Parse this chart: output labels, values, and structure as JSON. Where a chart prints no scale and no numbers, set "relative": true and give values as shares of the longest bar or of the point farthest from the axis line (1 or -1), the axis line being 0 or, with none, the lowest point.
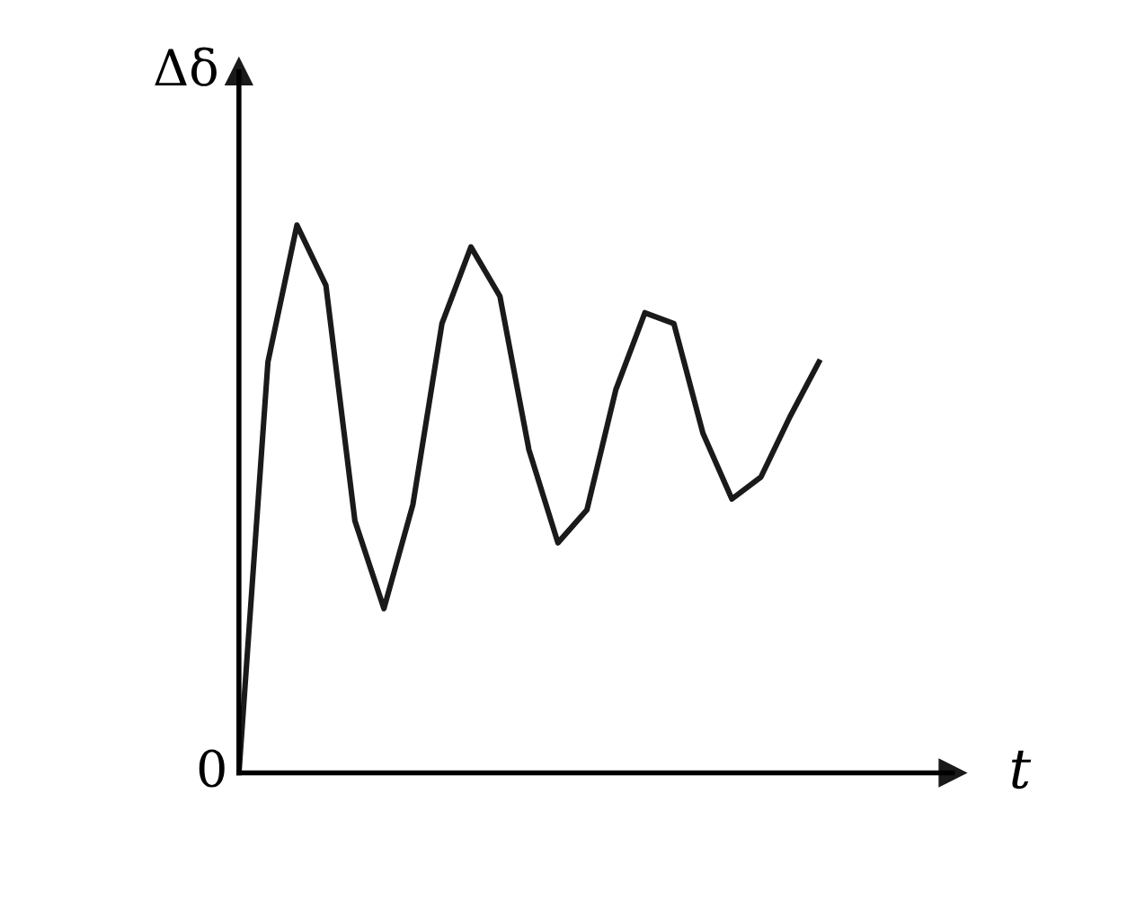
{
  "chart_data": {
    "type": "line",
    "relative": true,
    "xlabel": "t",
    "ylabel": "Δδ",
    "annotations": [
      "0"
    ],
    "categories": [
      null,
      null,
      null,
      null,
      null,
      null,
      null,
      null,
      null,
      null,
      null,
      null,
      null,
      null,
      null,
      null,
      null,
      null,
      null,
      null,
      null
    ],
    "series": [
      {
        "color": "#1a1a1a",
        "values": [
          0,
          0.75,
          1.0,
          0.89,
          0.46,
          0.3,
          0.49,
          0.82,
          0.96,
          0.87,
          0.59,
          0.42,
          0.48,
          0.7,
          0.84,
          0.82,
          0.62,
          0.5,
          0.54,
          0.65,
          0.75
        ]
      }
    ],
    "marker": "none",
    "line_style": "solid",
    "grid": false,
    "legend": false
  }
}
